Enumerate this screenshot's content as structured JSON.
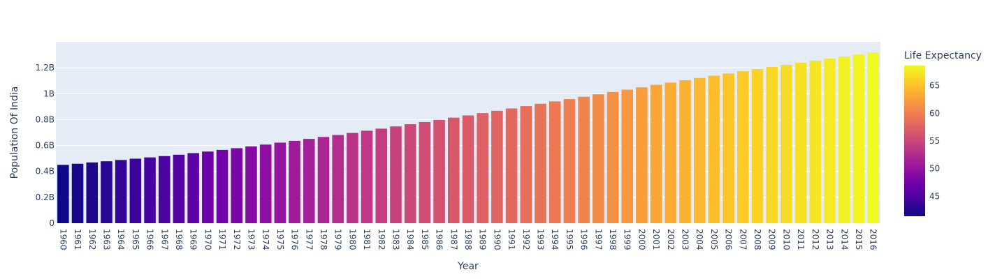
{
  "chart_data": {
    "type": "bar",
    "xlabel": "Year",
    "ylabel": "Population Of India",
    "ylim": [
      0,
      1400000000
    ],
    "grid": true,
    "plot_bg": "#e5ecf6",
    "grid_color": "#ffffff",
    "text_color": "#2a3f5f",
    "y_ticks": [
      {
        "value": 0,
        "label": "0"
      },
      {
        "value": 200000000,
        "label": "0.2B"
      },
      {
        "value": 400000000,
        "label": "0.4B"
      },
      {
        "value": 600000000,
        "label": "0.6B"
      },
      {
        "value": 800000000,
        "label": "0.8B"
      },
      {
        "value": 1000000000,
        "label": "1B"
      },
      {
        "value": 1200000000,
        "label": "1.2B"
      }
    ],
    "categories": [
      "1960",
      "1961",
      "1962",
      "1963",
      "1964",
      "1965",
      "1966",
      "1967",
      "1968",
      "1969",
      "1970",
      "1971",
      "1972",
      "1973",
      "1974",
      "1975",
      "1976",
      "1977",
      "1978",
      "1979",
      "1980",
      "1981",
      "1982",
      "1983",
      "1984",
      "1985",
      "1986",
      "1987",
      "1988",
      "1989",
      "1990",
      "1991",
      "1992",
      "1993",
      "1994",
      "1995",
      "1996",
      "1997",
      "1998",
      "1999",
      "2000",
      "2001",
      "2002",
      "2003",
      "2004",
      "2005",
      "2006",
      "2007",
      "2008",
      "2009",
      "2010",
      "2011",
      "2012",
      "2013",
      "2014",
      "2015",
      "2016"
    ],
    "values": [
      450000000,
      459000000,
      469000000,
      478000000,
      488000000,
      498000000,
      508000000,
      518000000,
      529000000,
      541000000,
      553000000,
      566000000,
      579000000,
      593000000,
      607000000,
      622000000,
      636000000,
      651000000,
      666000000,
      681000000,
      697000000,
      714000000,
      730000000,
      747000000,
      764000000,
      781000000,
      798000000,
      815000000,
      832000000,
      850000000,
      868000000,
      886000000,
      904000000,
      922000000,
      940000000,
      958000000,
      976000000,
      995000000,
      1013000000,
      1031000000,
      1049000000,
      1068000000,
      1086000000,
      1104000000,
      1121000000,
      1139000000,
      1156000000,
      1173000000,
      1190000000,
      1206000000,
      1222000000,
      1239000000,
      1255000000,
      1270000000,
      1286000000,
      1302000000,
      1317000000
    ],
    "color_values": [
      41.4,
      41.9,
      42.4,
      42.9,
      43.4,
      43.9,
      44.4,
      44.9,
      45.5,
      46.1,
      46.8,
      47.4,
      48.1,
      48.8,
      49.4,
      50.1,
      50.7,
      51.3,
      51.9,
      52.5,
      53.1,
      53.6,
      54.1,
      54.6,
      55.1,
      55.6,
      56.0,
      56.5,
      56.9,
      57.3,
      57.7,
      58.1,
      58.6,
      59.0,
      59.5,
      59.9,
      60.4,
      60.9,
      61.4,
      61.9,
      62.4,
      62.9,
      63.4,
      63.9,
      64.3,
      64.8,
      65.2,
      65.6,
      66.0,
      66.4,
      66.7,
      67.0,
      67.3,
      67.7,
      68.0,
      68.3,
      68.6
    ],
    "colorbar": {
      "title": "Life Expectancy",
      "min": 41.4,
      "max": 68.6,
      "ticks": [
        {
          "value": 45,
          "label": "45"
        },
        {
          "value": 50,
          "label": "50"
        },
        {
          "value": 55,
          "label": "55"
        },
        {
          "value": 60,
          "label": "60"
        },
        {
          "value": 65,
          "label": "65"
        }
      ],
      "colorscale": [
        "#0d0887",
        "#46039f",
        "#7201a8",
        "#9c179e",
        "#bd3786",
        "#d8576b",
        "#ed7953",
        "#fb9f3a",
        "#fdca26",
        "#f0f921"
      ]
    }
  }
}
